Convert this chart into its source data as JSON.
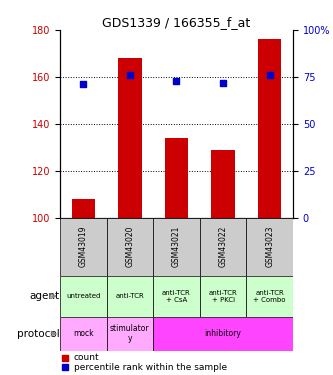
{
  "title": "GDS1339 / 166355_f_at",
  "samples": [
    "GSM43019",
    "GSM43020",
    "GSM43021",
    "GSM43022",
    "GSM43023"
  ],
  "bar_values": [
    108,
    168,
    134,
    129,
    176
  ],
  "percentile_values": [
    71,
    76,
    73,
    72,
    76
  ],
  "bar_color": "#cc0000",
  "percentile_color": "#0000cc",
  "ylim_left": [
    100,
    180
  ],
  "yticks_left": [
    100,
    120,
    140,
    160,
    180
  ],
  "yticks_right": [
    0,
    25,
    50,
    75,
    100
  ],
  "ylim_right": [
    0,
    100
  ],
  "agent_labels": [
    "untreated",
    "anti-TCR",
    "anti-TCR\n+ CsA",
    "anti-TCR\n+ PKCi",
    "anti-TCR\n+ Combo"
  ],
  "agent_color": "#ccffcc",
  "protocol_configs": [
    {
      "start": 0,
      "end": 0,
      "color": "#ffaaff",
      "text": "mock"
    },
    {
      "start": 1,
      "end": 1,
      "color": "#ffaaff",
      "text": "stimulator\ny"
    },
    {
      "start": 2,
      "end": 4,
      "color": "#ff44ff",
      "text": "inhibitory"
    }
  ],
  "header_color": "#cccccc",
  "left_ylabel_color": "#cc0000",
  "right_ylabel_color": "#0000cc",
  "arrow_color": "#888888"
}
